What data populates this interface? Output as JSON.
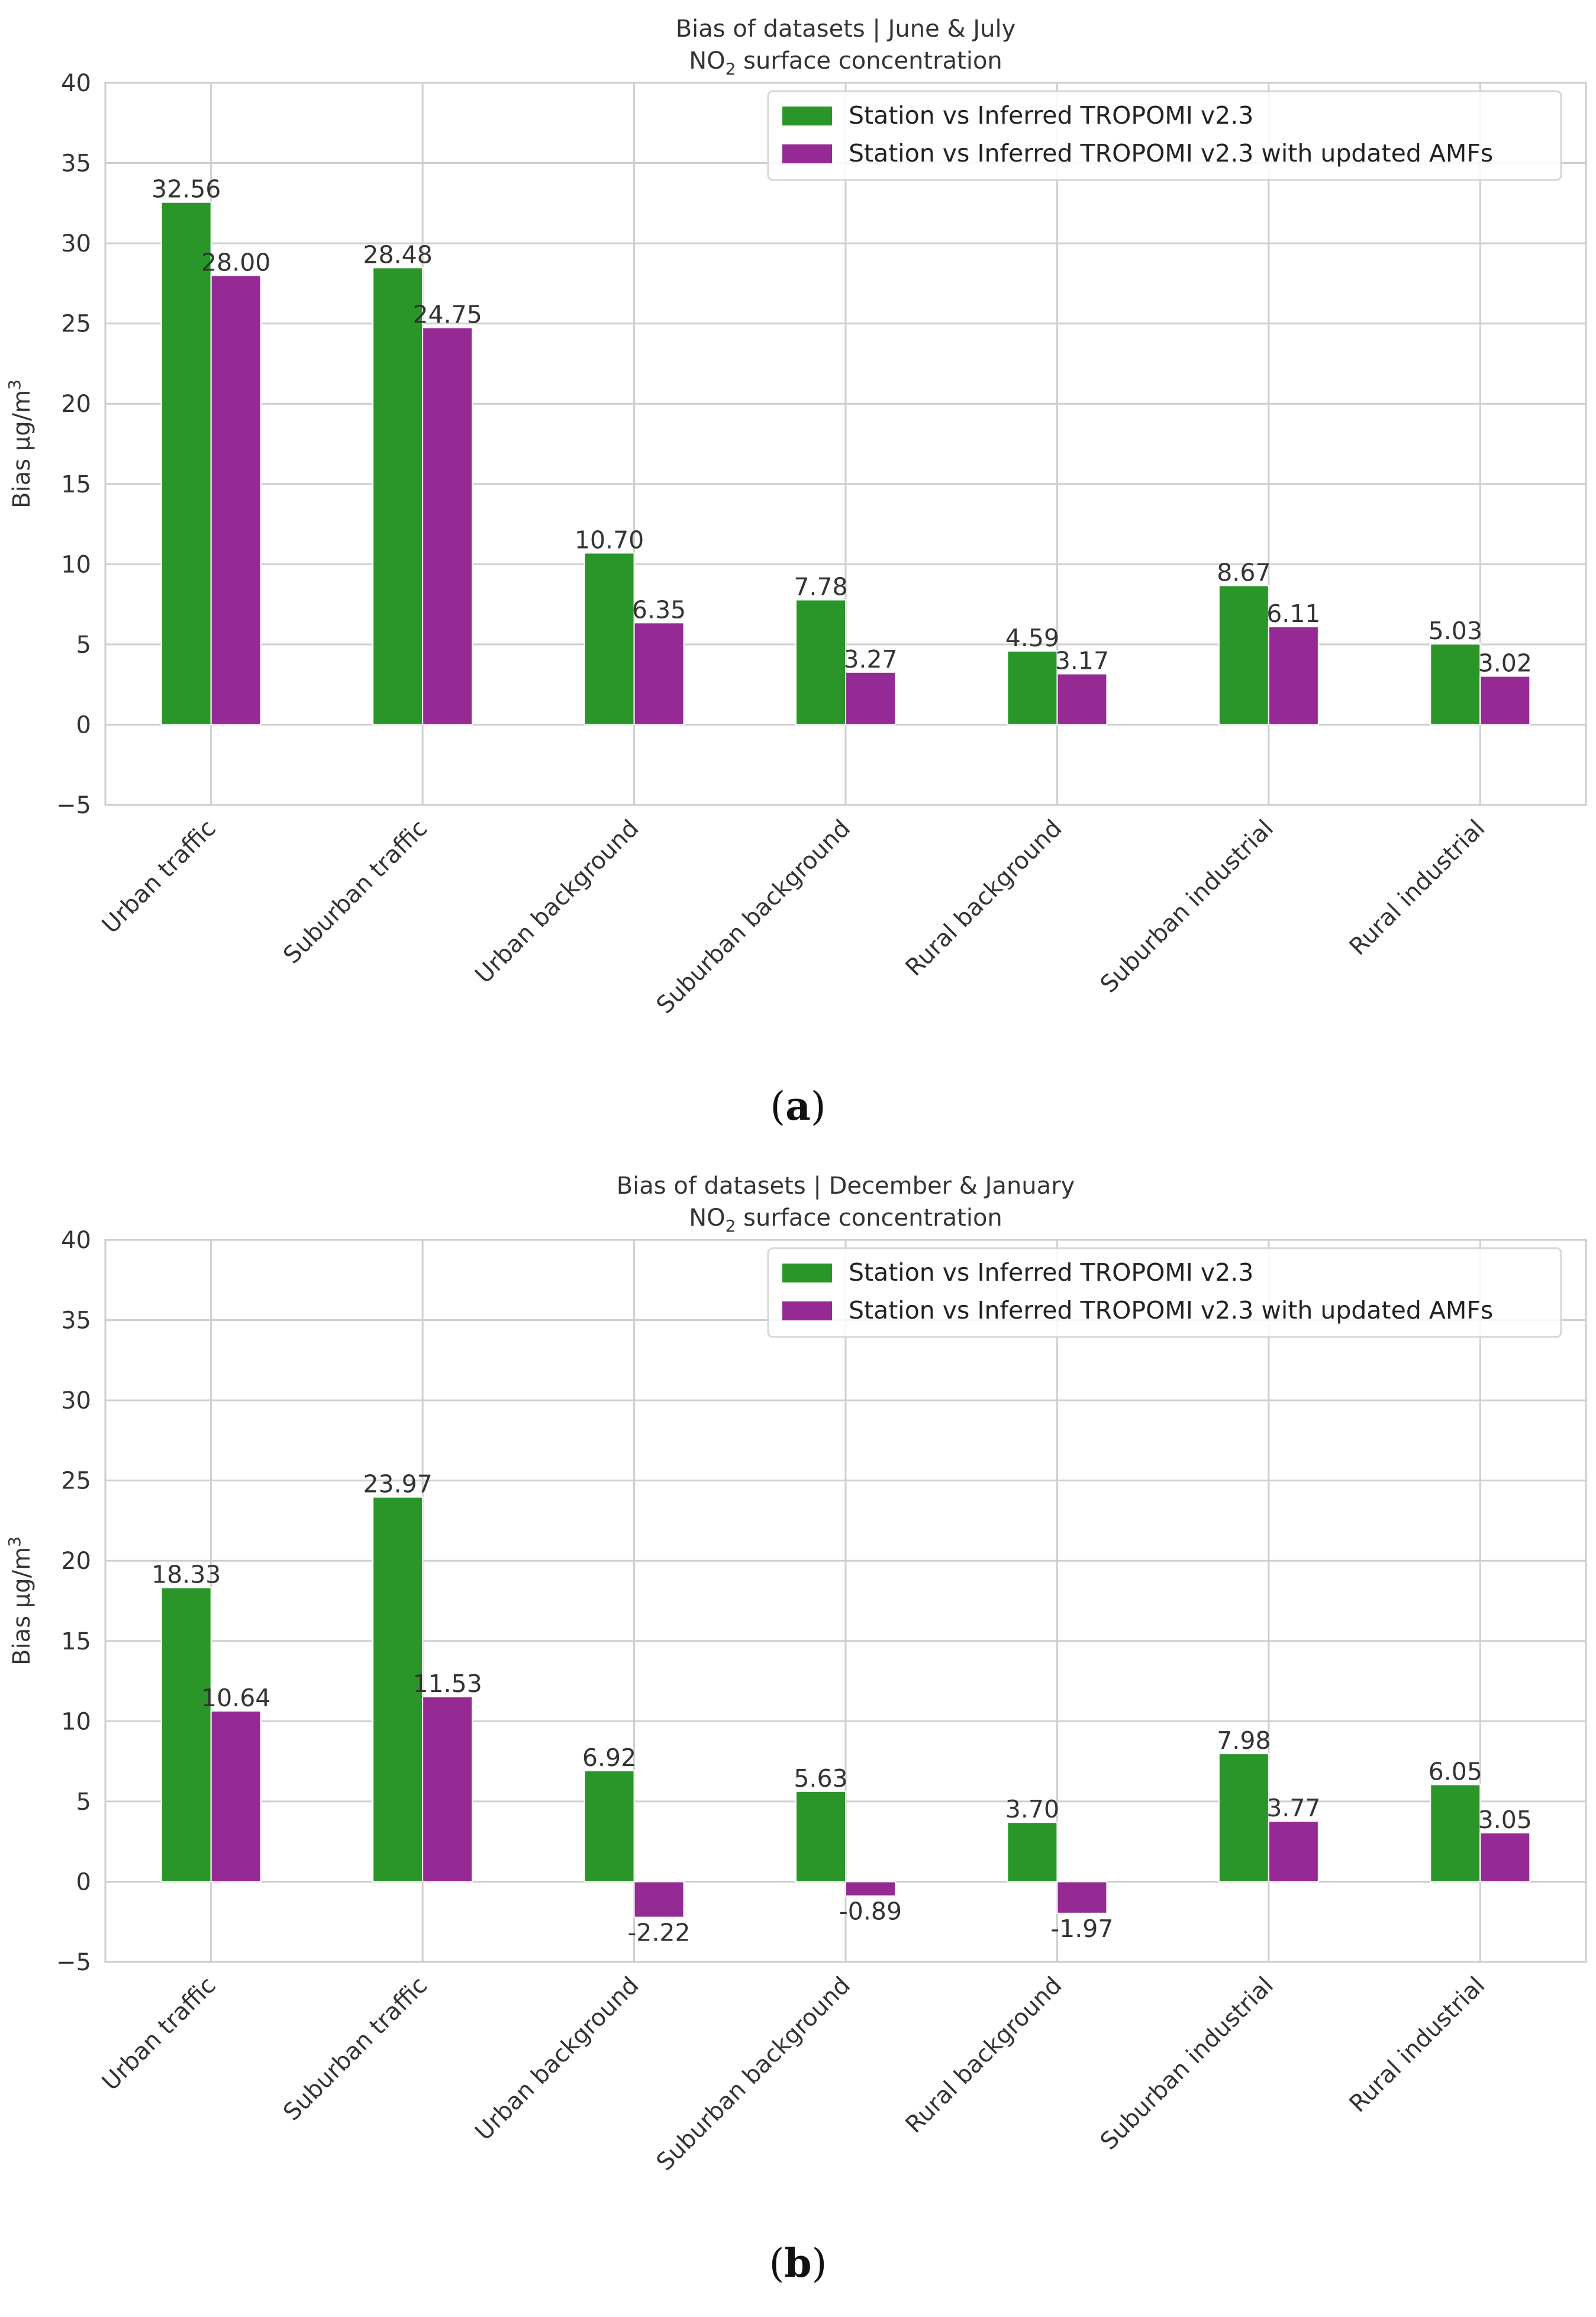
{
  "chart_data": [
    {
      "type": "bar",
      "panel_label": "a",
      "title": "Bias of datasets | June & July",
      "subtitle_prefix": "NO",
      "subtitle_sub": "2",
      "subtitle_suffix": " surface concentration",
      "ylabel_prefix": "Bias μg/m",
      "ylabel_sup": "3",
      "ylim": [
        -5,
        40
      ],
      "yticks": [
        -5,
        0,
        5,
        10,
        15,
        20,
        25,
        30,
        35,
        40
      ],
      "ytick_labels": [
        "−5",
        "0",
        "5",
        "10",
        "15",
        "20",
        "25",
        "30",
        "35",
        "40"
      ],
      "grid": true,
      "legend_position": "top-right",
      "categories": [
        "Urban traffic",
        "Suburban traffic",
        "Urban background",
        "Suburban background",
        "Rural background",
        "Suburban industrial",
        "Rural industrial"
      ],
      "series": [
        {
          "name": "Station vs Inferred TROPOMI v2.3",
          "color": "#2a962a",
          "values": [
            32.56,
            28.48,
            10.7,
            7.78,
            4.59,
            8.67,
            5.03
          ],
          "labels": [
            "32.56",
            "28.48",
            "10.70",
            "7.78",
            "4.59",
            "8.67",
            "5.03"
          ]
        },
        {
          "name": "Station vs Inferred TROPOMI v2.3 with updated AMFs",
          "color": "#952a95",
          "values": [
            28.0,
            24.75,
            6.35,
            3.27,
            3.17,
            6.11,
            3.02
          ],
          "labels": [
            "28.00",
            "24.75",
            "6.35",
            "3.27",
            "3.17",
            "6.11",
            "3.02"
          ]
        }
      ]
    },
    {
      "type": "bar",
      "panel_label": "b",
      "title": "Bias of datasets | December & January",
      "subtitle_prefix": "NO",
      "subtitle_sub": "2",
      "subtitle_suffix": " surface concentration",
      "ylabel_prefix": "Bias μg/m",
      "ylabel_sup": "3",
      "ylim": [
        -5,
        40
      ],
      "yticks": [
        -5,
        0,
        5,
        10,
        15,
        20,
        25,
        30,
        35,
        40
      ],
      "ytick_labels": [
        "−5",
        "0",
        "5",
        "10",
        "15",
        "20",
        "25",
        "30",
        "35",
        "40"
      ],
      "grid": true,
      "legend_position": "top-right",
      "categories": [
        "Urban traffic",
        "Suburban traffic",
        "Urban background",
        "Suburban background",
        "Rural background",
        "Suburban industrial",
        "Rural industrial"
      ],
      "series": [
        {
          "name": "Station vs Inferred TROPOMI v2.3",
          "color": "#2a962a",
          "values": [
            18.33,
            23.97,
            6.92,
            5.63,
            3.7,
            7.98,
            6.05
          ],
          "labels": [
            "18.33",
            "23.97",
            "6.92",
            "5.63",
            "3.70",
            "7.98",
            "6.05"
          ]
        },
        {
          "name": "Station vs Inferred TROPOMI v2.3 with updated AMFs",
          "color": "#952a95",
          "values": [
            10.64,
            11.53,
            -2.22,
            -0.89,
            -1.97,
            3.77,
            3.05
          ],
          "labels": [
            "10.64",
            "11.53",
            "-2.22",
            "-0.89",
            "-1.97",
            "3.77",
            "3.05"
          ]
        }
      ]
    }
  ]
}
